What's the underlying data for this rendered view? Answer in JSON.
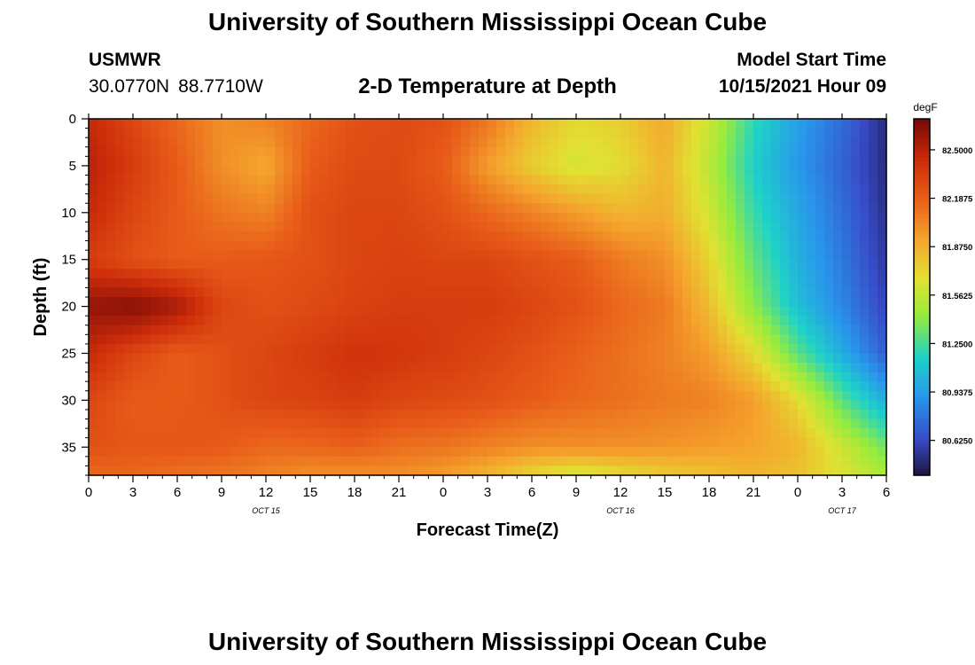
{
  "header": {
    "title": "University of Southern Mississippi Ocean Cube",
    "station": "USMWR",
    "latitude": "30.0770N",
    "longitude": "88.7710W",
    "subtitle": "2-D Temperature at Depth",
    "model_start_label": "Model Start Time",
    "model_start_value": "10/15/2021 Hour 09"
  },
  "footer": {
    "title": "University of Southern Mississippi Ocean Cube"
  },
  "chart_data": {
    "type": "heatmap",
    "title": "2-D Temperature at Depth",
    "xlabel": "Forecast Time(Z)",
    "ylabel": "Depth (ft)",
    "x_range": [
      0,
      54
    ],
    "y_range": [
      0,
      38
    ],
    "y_inverted": true,
    "x_ticks": [
      0,
      3,
      6,
      9,
      12,
      15,
      18,
      21,
      24,
      27,
      30,
      33,
      36,
      39,
      42,
      45,
      48,
      51,
      54
    ],
    "x_tick_labels": [
      "0",
      "3",
      "6",
      "9",
      "12",
      "15",
      "18",
      "21",
      "0",
      "3",
      "6",
      "9",
      "12",
      "15",
      "18",
      "21",
      "0",
      "3",
      "6"
    ],
    "y_ticks": [
      0,
      5,
      10,
      15,
      20,
      25,
      30,
      35
    ],
    "y_tick_labels": [
      "0",
      "5",
      "10",
      "15",
      "20",
      "25",
      "30",
      "35"
    ],
    "date_labels": [
      {
        "label": "OCT 15",
        "hour": 12
      },
      {
        "label": "OCT 16",
        "hour": 36
      },
      {
        "label": "OCT 17",
        "hour": 51
      }
    ],
    "colorbar": {
      "unit": "degF",
      "min": 80.4,
      "max": 82.7,
      "ticks": [
        82.5,
        82.1875,
        81.875,
        81.5625,
        81.25,
        80.9375,
        80.625
      ],
      "tick_labels": [
        "82.5000",
        "82.1875",
        "81.8750",
        "81.5625",
        "81.2500",
        "80.9375",
        "80.6250"
      ]
    },
    "depth_levels_ft": [
      0,
      5,
      10,
      15,
      20,
      25,
      30,
      35,
      38
    ],
    "time_hours": [
      0,
      3,
      6,
      9,
      12,
      15,
      18,
      21,
      24,
      27,
      30,
      33,
      36,
      39,
      42,
      45,
      48,
      51,
      54
    ],
    "temperature_degF": [
      [
        82.45,
        82.3,
        82.15,
        82.0,
        82.05,
        82.15,
        82.25,
        82.28,
        82.25,
        82.1,
        81.85,
        81.7,
        81.75,
        81.9,
        81.6,
        81.2,
        80.95,
        80.75,
        80.5
      ],
      [
        82.5,
        82.35,
        82.2,
        82.0,
        81.9,
        82.2,
        82.28,
        82.28,
        82.2,
        81.95,
        81.75,
        81.62,
        81.68,
        81.85,
        81.55,
        81.15,
        80.92,
        80.72,
        80.5
      ],
      [
        82.45,
        82.3,
        82.2,
        82.1,
        82.05,
        82.25,
        82.3,
        82.3,
        82.25,
        82.15,
        82.05,
        81.95,
        81.85,
        81.88,
        81.62,
        81.22,
        80.98,
        80.76,
        80.52
      ],
      [
        82.35,
        82.25,
        82.2,
        82.2,
        82.22,
        82.25,
        82.3,
        82.32,
        82.3,
        82.3,
        82.25,
        82.2,
        82.08,
        82.0,
        81.72,
        81.32,
        81.02,
        80.8,
        80.55
      ],
      [
        82.6,
        82.65,
        82.55,
        82.3,
        82.25,
        82.28,
        82.32,
        82.35,
        82.35,
        82.35,
        82.3,
        82.25,
        82.15,
        82.08,
        81.82,
        81.42,
        81.08,
        80.85,
        80.6
      ],
      [
        82.45,
        82.3,
        82.2,
        82.25,
        82.3,
        82.35,
        82.4,
        82.38,
        82.35,
        82.3,
        82.25,
        82.18,
        82.12,
        82.05,
        81.95,
        81.7,
        81.3,
        81.0,
        80.7
      ],
      [
        82.3,
        82.2,
        82.2,
        82.25,
        82.3,
        82.32,
        82.35,
        82.3,
        82.28,
        82.25,
        82.2,
        82.15,
        82.12,
        82.08,
        82.05,
        81.95,
        81.7,
        81.3,
        81.0
      ],
      [
        82.25,
        82.22,
        82.22,
        82.2,
        82.15,
        82.15,
        82.18,
        82.12,
        82.1,
        82.05,
        82.0,
        82.0,
        82.0,
        81.98,
        81.95,
        81.92,
        81.85,
        81.6,
        81.35
      ],
      [
        82.15,
        82.15,
        82.12,
        82.1,
        82.05,
        82.0,
        82.0,
        82.0,
        81.95,
        81.85,
        81.7,
        81.6,
        81.68,
        81.75,
        81.8,
        81.85,
        81.8,
        81.65,
        81.5
      ]
    ]
  }
}
